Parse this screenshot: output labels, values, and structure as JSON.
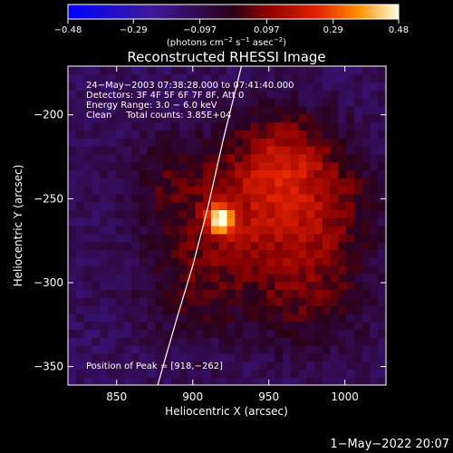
{
  "chart_data": {
    "type": "heatmap",
    "title": "Reconstructed RHESSI Image",
    "xlabel": "Heliocentric X (arcsec)",
    "ylabel": "Heliocentric Y (arcsec)",
    "xlim": [
      818,
      1027
    ],
    "ylim": [
      -361,
      -171
    ],
    "x_ticks": [
      850,
      900,
      950,
      1000
    ],
    "y_ticks": [
      -200,
      -250,
      -300,
      -350
    ],
    "x_tick_labels": [
      "850",
      "900",
      "950",
      "1000"
    ],
    "y_tick_labels": [
      "−200",
      "−250",
      "−300",
      "−350"
    ],
    "colorbar": {
      "min": -0.48,
      "max": 0.48,
      "ticks": [
        -0.48,
        -0.29,
        -0.097,
        0.097,
        0.29,
        0.48
      ],
      "tick_labels": [
        "−0.48",
        "−0.29",
        "−0.097",
        "0.097",
        "0.29",
        "0.48"
      ],
      "unit_text": "(photons cm",
      "unit_exp1": "−2",
      "unit_mid": " s",
      "unit_exp2": "−1",
      "unit_mid2": " asec",
      "unit_exp3": "−2",
      "unit_end": ")"
    },
    "annotations": [
      "24−May−2003 07:38:28.000 to 07:41:40.000",
      "Detectors: 3F 4F 5F 6F 7F 8F, Att 0",
      "Energy Range: 3.0 − 6.0 keV",
      "Clean     Total counts: 3.85E+04"
    ],
    "peak_label": "Position of Peak = [918,−262]",
    "peak": {
      "x": 918,
      "y": -262,
      "value": 0.48
    },
    "emission_peaks": [
      {
        "x": 918,
        "y": -262,
        "value": 0.48,
        "sigma": 6
      },
      {
        "x": 935,
        "y": -255,
        "value": 0.2,
        "sigma": 30
      },
      {
        "x": 960,
        "y": -225,
        "value": 0.18,
        "sigma": 22
      },
      {
        "x": 975,
        "y": -300,
        "value": 0.16,
        "sigma": 28
      },
      {
        "x": 990,
        "y": -250,
        "value": 0.14,
        "sigma": 25
      },
      {
        "x": 900,
        "y": -300,
        "value": 0.12,
        "sigma": 25
      },
      {
        "x": 880,
        "y": -240,
        "value": 0.1,
        "sigma": 20
      }
    ],
    "limb_line": {
      "x": [
        877,
        882,
        890,
        900,
        910,
        920,
        932
      ],
      "y": [
        -361,
        -345,
        -320,
        -290,
        -255,
        -215,
        -171
      ]
    }
  },
  "footer": {
    "date": "1−May−2022 20:07"
  }
}
